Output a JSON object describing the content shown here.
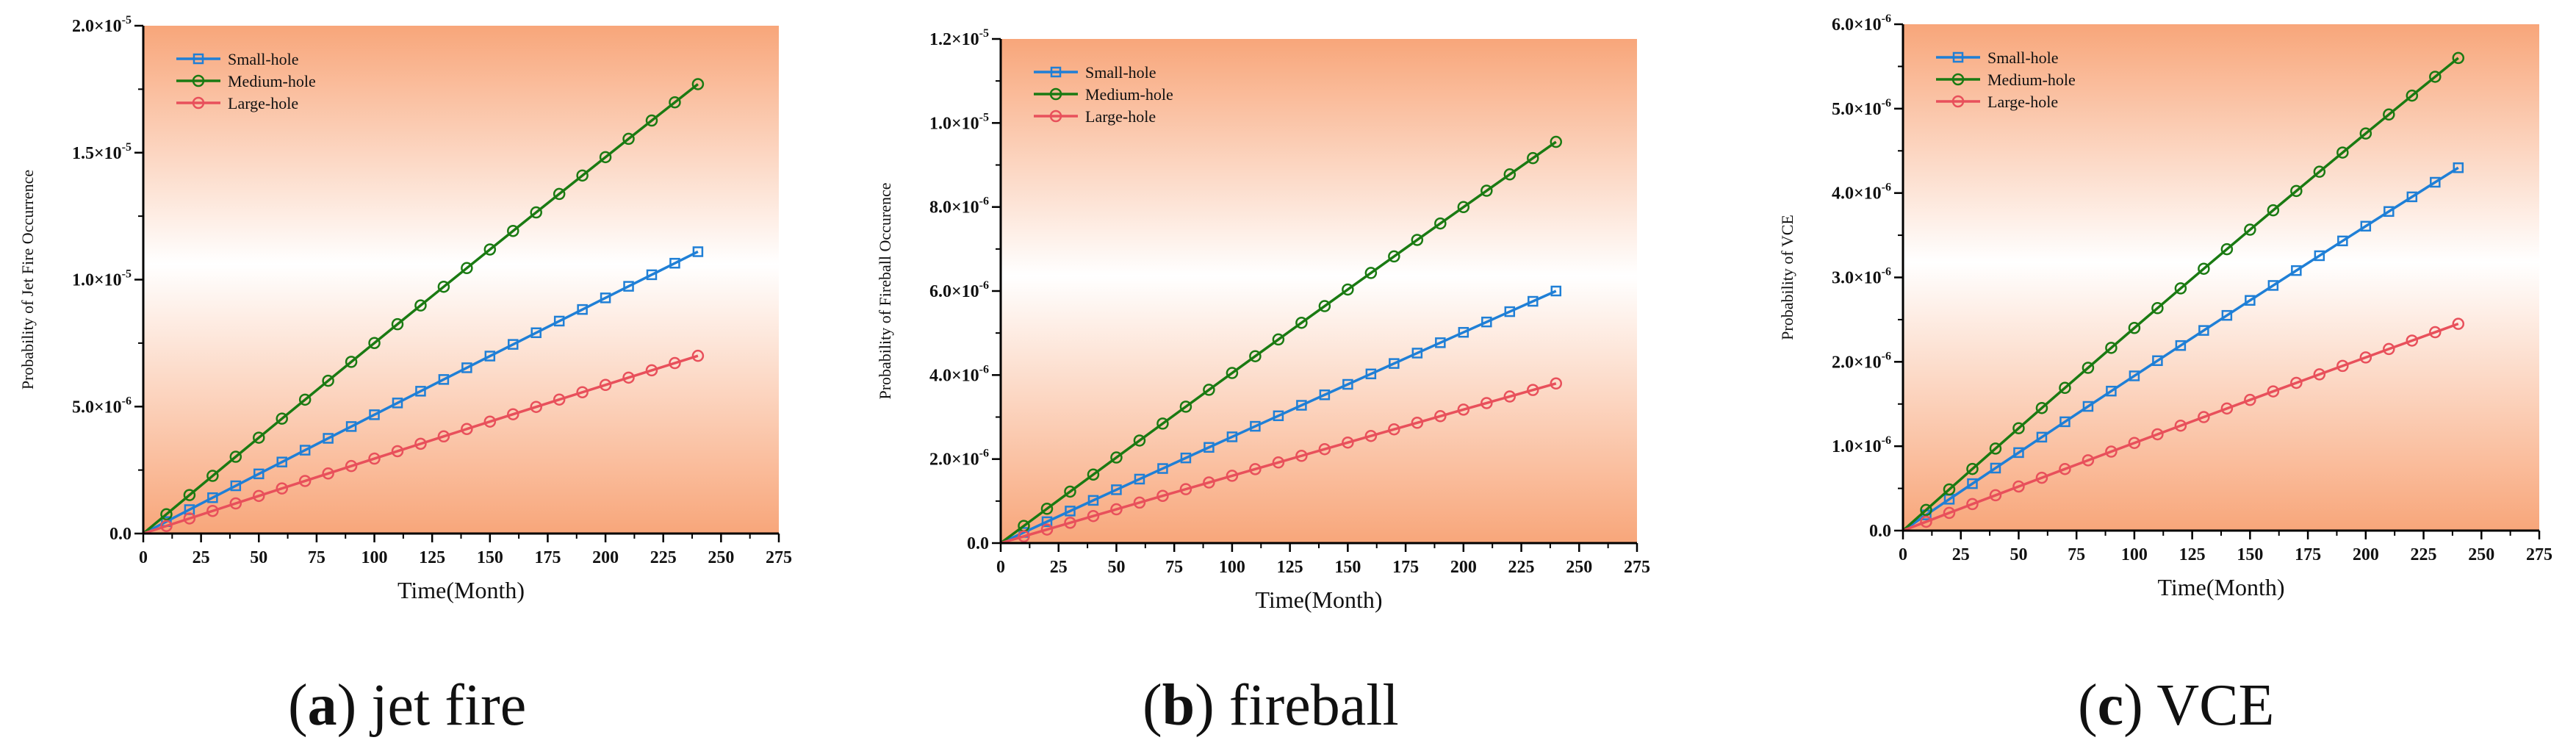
{
  "colors": {
    "small_hole": "#1f7fd6",
    "medium_hole": "#1a7a12",
    "large_hole": "#e8505b",
    "gradient_edge": "#f8a67a",
    "gradient_center": "#ffffff"
  },
  "legend_labels": [
    "Small-hole",
    "Medium-hole",
    "Large-hole"
  ],
  "captions": [
    {
      "letter": "a",
      "text": "jet fire"
    },
    {
      "letter": "b",
      "text": "fireball"
    },
    {
      "letter": "c",
      "text": "VCE"
    }
  ],
  "chart_data": [
    {
      "type": "line",
      "xlabel": "Time(Month)",
      "ylabel": "Probability of Jet Fire Occurrence",
      "xlim": [
        0,
        275
      ],
      "ylim": [
        0,
        2e-05
      ],
      "xticks": [
        0,
        25,
        50,
        75,
        100,
        125,
        150,
        175,
        200,
        225,
        250,
        275
      ],
      "yticks": [
        {
          "v": 0,
          "m": "0.0",
          "e": ""
        },
        {
          "v": 5e-06,
          "m": "5.0×10",
          "e": "-6"
        },
        {
          "v": 1e-05,
          "m": "1.0×10",
          "e": "-5"
        },
        {
          "v": 1.5e-05,
          "m": "1.5×10",
          "e": "-5"
        },
        {
          "v": 2e-05,
          "m": "2.0×10",
          "e": "-5"
        }
      ],
      "grid": false,
      "legend": "top-left",
      "x": [
        0,
        10,
        20,
        30,
        40,
        50,
        60,
        70,
        80,
        90,
        100,
        110,
        120,
        130,
        140,
        150,
        160,
        170,
        180,
        190,
        200,
        210,
        220,
        230,
        240
      ],
      "series": [
        {
          "name": "Small-hole",
          "color_key": "small_hole",
          "marker": "square",
          "end": 1.11e-05,
          "curve": 0.02
        },
        {
          "name": "Medium-hole",
          "color_key": "medium_hole",
          "marker": "circle",
          "end": 1.77e-05,
          "curve": 0.03
        },
        {
          "name": "Large-hole",
          "color_key": "large_hole",
          "marker": "circle",
          "end": 7e-06,
          "curve": 0.02
        }
      ]
    },
    {
      "type": "line",
      "xlabel": "Time(Month)",
      "ylabel": "Probability of Fireball Occurence",
      "xlim": [
        0,
        275
      ],
      "ylim": [
        0,
        1.2e-05
      ],
      "xticks": [
        0,
        25,
        50,
        75,
        100,
        125,
        150,
        175,
        200,
        225,
        250,
        275
      ],
      "yticks": [
        {
          "v": 0,
          "m": "0.0",
          "e": ""
        },
        {
          "v": 2e-06,
          "m": "2.0×10",
          "e": "-6"
        },
        {
          "v": 4e-06,
          "m": "4.0×10",
          "e": "-6"
        },
        {
          "v": 6e-06,
          "m": "6.0×10",
          "e": "-6"
        },
        {
          "v": 8e-06,
          "m": "8.0×10",
          "e": "-6"
        },
        {
          "v": 1e-05,
          "m": "1.0×10",
          "e": "-5"
        },
        {
          "v": 1.2e-05,
          "m": "1.2×10",
          "e": "-5"
        }
      ],
      "grid": false,
      "legend": "top-left",
      "x": [
        0,
        10,
        20,
        30,
        40,
        50,
        60,
        70,
        80,
        90,
        100,
        110,
        120,
        130,
        140,
        150,
        160,
        170,
        180,
        190,
        200,
        210,
        220,
        230,
        240
      ],
      "series": [
        {
          "name": "Small-hole",
          "color_key": "small_hole",
          "marker": "square",
          "end": 6e-06,
          "curve": 0.02
        },
        {
          "name": "Medium-hole",
          "color_key": "medium_hole",
          "marker": "circle",
          "end": 9.55e-06,
          "curve": 0.03
        },
        {
          "name": "Large-hole",
          "color_key": "large_hole",
          "marker": "circle",
          "end": 3.8e-06,
          "curve": 0.02
        }
      ]
    },
    {
      "type": "line",
      "xlabel": "Time(Month)",
      "ylabel": "Probability of VCE",
      "xlim": [
        0,
        275
      ],
      "ylim": [
        0,
        6e-06
      ],
      "xticks": [
        0,
        25,
        50,
        75,
        100,
        125,
        150,
        175,
        200,
        225,
        250,
        275
      ],
      "yticks": [
        {
          "v": 0,
          "m": "0.0",
          "e": ""
        },
        {
          "v": 1e-06,
          "m": "1.0×10",
          "e": "-6"
        },
        {
          "v": 2e-06,
          "m": "2.0×10",
          "e": "-6"
        },
        {
          "v": 3e-06,
          "m": "3.0×10",
          "e": "-6"
        },
        {
          "v": 4e-06,
          "m": "4.0×10",
          "e": "-6"
        },
        {
          "v": 5e-06,
          "m": "5.0×10",
          "e": "-6"
        },
        {
          "v": 6e-06,
          "m": "6.0×10",
          "e": "-6"
        }
      ],
      "grid": false,
      "legend": "top-left",
      "x": [
        0,
        10,
        20,
        30,
        40,
        50,
        60,
        70,
        80,
        90,
        100,
        110,
        120,
        130,
        140,
        150,
        160,
        170,
        180,
        190,
        200,
        210,
        220,
        230,
        240
      ],
      "series": [
        {
          "name": "Small-hole",
          "color_key": "small_hole",
          "marker": "square",
          "end": 4.3e-06,
          "curve": 0.04
        },
        {
          "name": "Medium-hole",
          "color_key": "medium_hole",
          "marker": "circle",
          "end": 5.6e-06,
          "curve": 0.05
        },
        {
          "name": "Large-hole",
          "color_key": "large_hole",
          "marker": "circle",
          "end": 2.45e-06,
          "curve": 0.03
        }
      ]
    }
  ]
}
